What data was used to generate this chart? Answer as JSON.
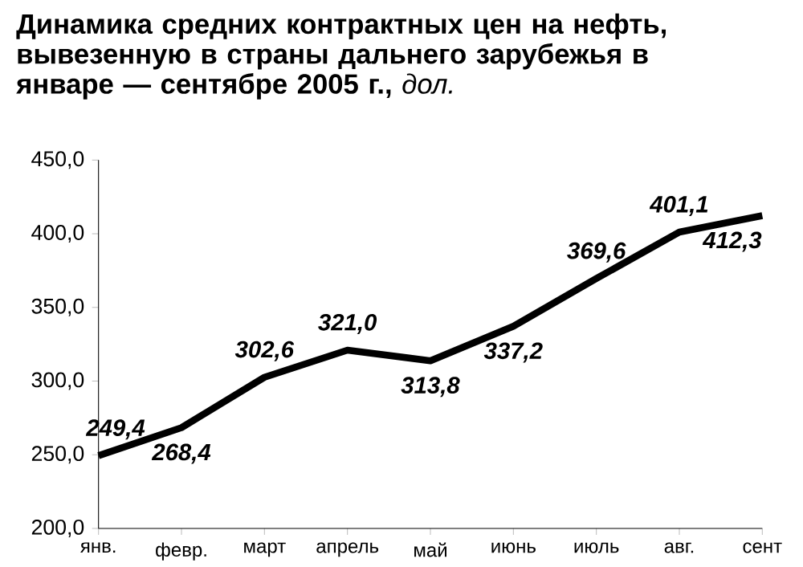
{
  "chart_data": {
    "type": "line",
    "title": "**Динамика средних контрактных цен на нефть, вывезенную в страны дальнего зарубежья в январе — сентябре 2005 г.,** *дол.*",
    "categories": [
      "янв.",
      "февр.",
      "март",
      "апрель",
      "май",
      "июнь",
      "июль",
      "авг.",
      "сент"
    ],
    "series": [
      {
        "color": "#000000",
        "values": [
          249.4,
          268.4,
          302.6,
          321.0,
          313.8,
          337.2,
          369.6,
          401.1,
          412.3
        ],
        "value_labels": [
          "249,4",
          "268,4",
          "302,6",
          "321,0",
          "313,8",
          "337,2",
          "369,6",
          "401,1",
          "412,3"
        ]
      }
    ],
    "ylim": [
      200,
      450
    ],
    "yticks": [
      {
        "value": 200,
        "label": "200,0"
      },
      {
        "value": 250,
        "label": "250,0"
      },
      {
        "value": 300,
        "label": "300,0"
      },
      {
        "value": 350,
        "label": "350,0"
      },
      {
        "value": 400,
        "label": "400,0"
      },
      {
        "value": 450,
        "label": "450,0"
      }
    ],
    "grid": false,
    "marker": "none",
    "line_style": "solid"
  }
}
